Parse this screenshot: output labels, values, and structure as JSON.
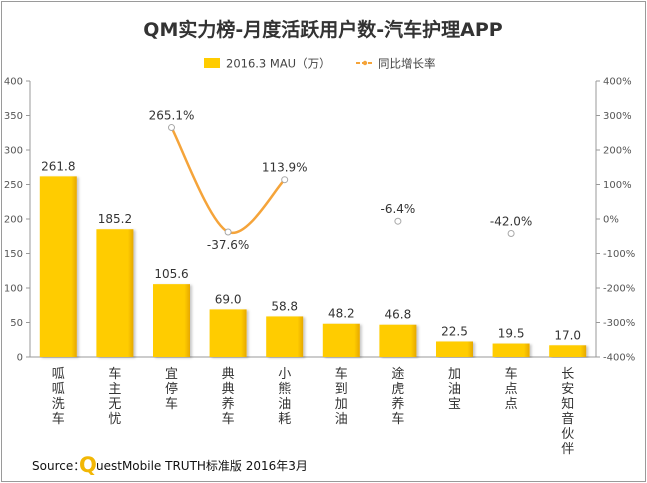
{
  "chart_data": {
    "type": "bar",
    "title": "QM实力榜-月度活跃用户数-汽车护理APP",
    "legend": {
      "placement": "top-center",
      "bar_label": "2016.3 MAU（万）",
      "line_label": "同比增长率"
    },
    "categories": [
      "呱呱洗车",
      "车主无忧",
      "宜停车",
      "典典养车",
      "小熊油耗",
      "车到加油",
      "途虎养车",
      "加油宝",
      "车点点",
      "长安知音伙伴"
    ],
    "series": [
      {
        "name": "2016.3 MAU（万）",
        "type": "bar",
        "axis": "left",
        "values": [
          261.8,
          185.2,
          105.6,
          69.0,
          58.8,
          48.2,
          46.8,
          22.5,
          19.5,
          17.0
        ],
        "labels": [
          "261.8",
          "185.2",
          "105.6",
          "69.0",
          "58.8",
          "48.2",
          "46.8",
          "22.5",
          "19.5",
          "17.0"
        ]
      },
      {
        "name": "同比增长率",
        "type": "line",
        "axis": "right",
        "values": [
          null,
          null,
          265.1,
          -37.6,
          113.9,
          null,
          -6.4,
          null,
          -42.0,
          null
        ],
        "labels": [
          null,
          null,
          "265.1%",
          "-37.6%",
          "113.9%",
          null,
          "-6.4%",
          null,
          "-42.0%",
          null
        ]
      }
    ],
    "y_left": {
      "min": 0,
      "max": 400,
      "ticks": [
        "0",
        "50",
        "100",
        "150",
        "200",
        "250",
        "300",
        "350",
        "400"
      ]
    },
    "y_right": {
      "min": -400,
      "max": 400,
      "ticks": [
        "-400%",
        "-300%",
        "-200%",
        "-100%",
        "0%",
        "100%",
        "200%",
        "300%",
        "400%"
      ]
    },
    "grid": false,
    "colors": {
      "bar": "#FFCC00",
      "bar_dark": "#E6A800",
      "line": "#F5A43A",
      "axis": "#999999",
      "text": "#333333",
      "border": "#9A9A9A"
    }
  },
  "source": {
    "prefix": "Source：",
    "logo_letter": "Q",
    "text": "uestMobile TRUTH标准版 2016年3月"
  }
}
